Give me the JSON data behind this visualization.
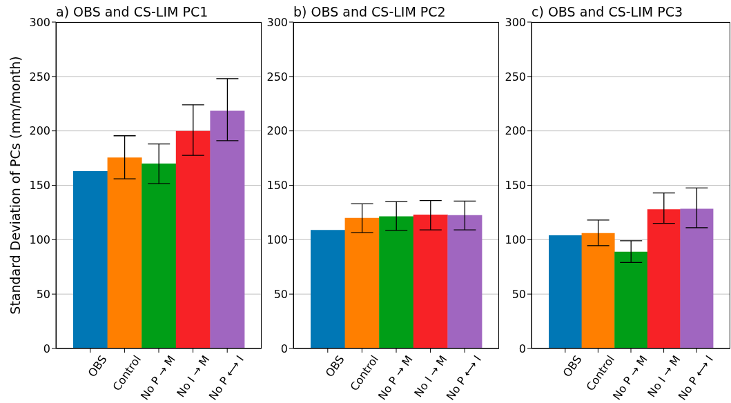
{
  "chart_data": [
    {
      "type": "bar",
      "title": "a) OBS and CS-LIM PC1",
      "ylabel": "Standard Deviation of PCs (mm/month)",
      "categories": [
        "OBS",
        "Control",
        "No P → M",
        "No I → M",
        "No P ⟷ I"
      ],
      "values": [
        163,
        175.5,
        170,
        200,
        218.5
      ],
      "colors": [
        "#0077b5",
        "#ff7f00",
        "#009e17",
        "#f72226",
        "#a066c0"
      ],
      "errors": [
        null,
        [
          156,
          195.5
        ],
        [
          151.5,
          188
        ],
        [
          177.5,
          224
        ],
        [
          191,
          248
        ]
      ],
      "ylim": [
        0,
        300
      ],
      "yticks": [
        0,
        50,
        100,
        150,
        200,
        250,
        300
      ],
      "grid": "y"
    },
    {
      "type": "bar",
      "title": "b) OBS and CS-LIM PC2",
      "categories": [
        "OBS",
        "Control",
        "No P → M",
        "No I → M",
        "No P ⟷ I"
      ],
      "values": [
        109,
        120,
        121.5,
        123,
        122.5
      ],
      "colors": [
        "#0077b5",
        "#ff7f00",
        "#009e17",
        "#f72226",
        "#a066c0"
      ],
      "errors": [
        null,
        [
          106.5,
          133
        ],
        [
          108.5,
          135
        ],
        [
          109,
          136
        ],
        [
          109,
          135.5
        ]
      ],
      "ylim": [
        0,
        300
      ],
      "yticks": [
        0,
        50,
        100,
        150,
        200,
        250,
        300
      ],
      "grid": "y"
    },
    {
      "type": "bar",
      "title": "c) OBS and CS-LIM PC3",
      "categories": [
        "OBS",
        "Control",
        "No P → M",
        "No I → M",
        "No P ⟷ I"
      ],
      "values": [
        104,
        106,
        89,
        128,
        128.5
      ],
      "colors": [
        "#0077b5",
        "#ff7f00",
        "#009e17",
        "#f72226",
        "#a066c0"
      ],
      "errors": [
        null,
        [
          94.5,
          118
        ],
        [
          79,
          99
        ],
        [
          115,
          143
        ],
        [
          111,
          147.5
        ]
      ],
      "ylim": [
        0,
        300
      ],
      "yticks": [
        0,
        50,
        100,
        150,
        200,
        250,
        300
      ],
      "grid": "y"
    }
  ]
}
